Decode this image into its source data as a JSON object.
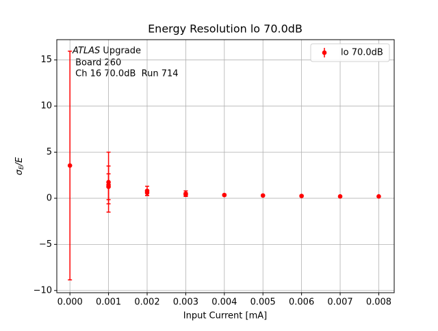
{
  "chart_data": {
    "type": "errorbar",
    "title": "Energy Resolution lo 70.0dB",
    "xlabel": "Input Current [mA]",
    "ylabel": [
      "σ",
      "E",
      "/E"
    ],
    "annotation": {
      "emph": "ATLAS",
      "rest": "Upgrade",
      "lines": [
        " Board 260",
        " Ch 16 70.0dB  Run 714"
      ]
    },
    "series": [
      {
        "name": "lo 70.0dB",
        "color": "#ff0000",
        "x": [
          0.0,
          0.001,
          0.001,
          0.001,
          0.002,
          0.002,
          0.003,
          0.003,
          0.004,
          0.005,
          0.006,
          0.007,
          0.008
        ],
        "values": [
          3.55,
          1.75,
          1.45,
          1.25,
          0.8,
          0.6,
          0.5,
          0.4,
          0.35,
          0.3,
          0.25,
          0.2,
          0.2
        ],
        "errors": [
          12.4,
          3.25,
          2.05,
          1.4,
          0.5,
          0.3,
          0.3,
          0.2,
          0.1,
          0.05,
          0.08,
          0.05,
          0.05
        ]
      }
    ],
    "xlim": [
      -0.00034,
      0.0084
    ],
    "ylim": [
      -10.24,
      17.2
    ],
    "xticks": [
      {
        "value": 0.0,
        "label": "0.000"
      },
      {
        "value": 0.001,
        "label": "0.001"
      },
      {
        "value": 0.002,
        "label": "0.002"
      },
      {
        "value": 0.003,
        "label": "0.003"
      },
      {
        "value": 0.004,
        "label": "0.004"
      },
      {
        "value": 0.005,
        "label": "0.005"
      },
      {
        "value": 0.006,
        "label": "0.006"
      },
      {
        "value": 0.007,
        "label": "0.007"
      },
      {
        "value": 0.008,
        "label": "0.008"
      }
    ],
    "yticks": [
      {
        "value": -10,
        "label": "−10"
      },
      {
        "value": -5,
        "label": "−5"
      },
      0,
      5,
      10,
      15
    ],
    "grid": true,
    "legend": "upper right"
  }
}
